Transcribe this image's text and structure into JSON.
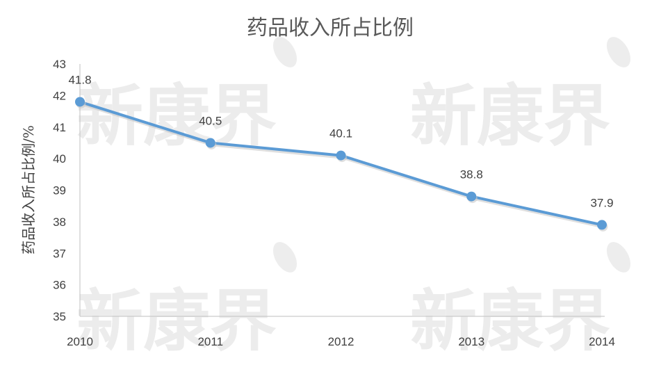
{
  "chart_data": {
    "type": "line",
    "title": "药品收入所占比例",
    "ylabel": "药品收入所占比例/%",
    "xlabel": "",
    "categories": [
      "2010",
      "2011",
      "2012",
      "2013",
      "2014"
    ],
    "series": [
      {
        "values": [
          41.8,
          40.5,
          40.1,
          38.8,
          37.9
        ],
        "color": "#5b9bd5"
      }
    ],
    "data_labels": [
      "41.8",
      "40.5",
      "40.1",
      "38.8",
      "37.9"
    ],
    "ylim": [
      35,
      43
    ],
    "yticks": [
      "35",
      "36",
      "37",
      "38",
      "39",
      "40",
      "41",
      "42",
      "43"
    ],
    "grid": false,
    "legend": "none"
  },
  "watermark": {
    "text": "新康界",
    "color": "#ececec"
  }
}
